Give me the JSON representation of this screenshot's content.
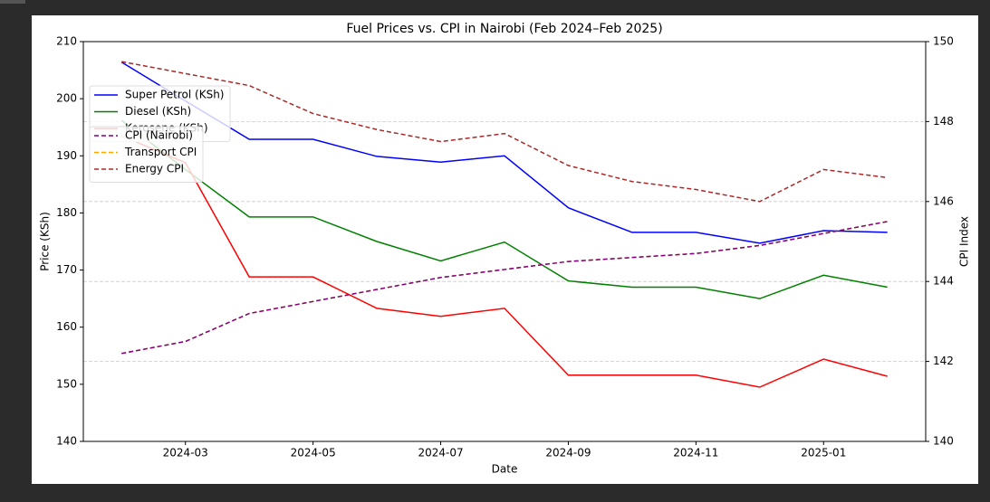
{
  "chart_data": {
    "type": "line",
    "title": "Fuel Prices vs. CPI in Nairobi (Feb 2024–Feb 2025)",
    "xlabel": "Date",
    "ylabel": "Price (KSh)",
    "y2label": "CPI Index",
    "x": [
      "2024-02",
      "2024-03",
      "2024-04",
      "2024-05",
      "2024-06",
      "2024-07",
      "2024-08",
      "2024-09",
      "2024-10",
      "2024-11",
      "2024-12",
      "2025-01",
      "2025-02"
    ],
    "xticks": [
      "2024-03",
      "2024-05",
      "2024-07",
      "2024-09",
      "2024-11",
      "2025-01"
    ],
    "ylim": [
      140,
      210
    ],
    "yticks": [
      140,
      150,
      160,
      170,
      180,
      190,
      200,
      210
    ],
    "y2lim": [
      140,
      150
    ],
    "y2ticks": [
      140,
      142,
      144,
      146,
      148,
      150
    ],
    "grid": true,
    "series": [
      {
        "name": "Super Petrol (KSh)",
        "color": "#0000ff",
        "linestyle": "solid",
        "values": [
          206.4,
          199.6,
          192.9,
          192.9,
          189.9,
          188.9,
          190.0,
          180.9,
          176.6,
          176.6,
          174.7,
          176.9,
          176.6
        ]
      },
      {
        "name": "Diesel (KSh)",
        "color": "#008000",
        "linestyle": "solid",
        "values": [
          196.2,
          187.6,
          179.3,
          179.3,
          175.0,
          171.6,
          174.9,
          168.1,
          167.0,
          167.0,
          165.0,
          169.1,
          167.0
        ]
      },
      {
        "name": "Kerosene (KSh)",
        "color": "#ff0000",
        "linestyle": "solid",
        "values": [
          193.5,
          188.8,
          168.8,
          168.8,
          163.3,
          161.9,
          163.3,
          151.6,
          151.6,
          151.6,
          149.5,
          154.4,
          151.4
        ]
      },
      {
        "name": "CPI (Nairobi)",
        "color": "#800080",
        "linestyle": "dashed",
        "axis": "y2",
        "values": [
          142.2,
          142.5,
          143.2,
          143.5,
          143.8,
          144.1,
          144.3,
          144.5,
          144.6,
          144.7,
          144.9,
          145.2,
          145.5
        ]
      },
      {
        "name": "Transport CPI",
        "color": "#ffa500",
        "linestyle": "dashed",
        "axis": "y2",
        "values": [
          142.2,
          142.5,
          143.2,
          143.5,
          143.8,
          144.1,
          144.3,
          144.5,
          144.6,
          144.7,
          144.9,
          145.2,
          145.5
        ]
      },
      {
        "name": "Energy CPI",
        "color": "#a52a2a",
        "linestyle": "dashed",
        "axis": "y2",
        "values": [
          149.5,
          149.2,
          148.9,
          148.2,
          147.8,
          147.5,
          147.7,
          146.9,
          146.5,
          146.3,
          146.0,
          146.8,
          146.6
        ]
      }
    ]
  }
}
